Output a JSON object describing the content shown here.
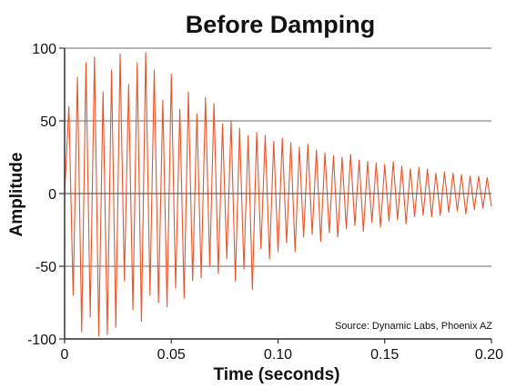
{
  "chart_data": {
    "type": "line",
    "title": "Before Damping",
    "xlabel": "Time (seconds)",
    "ylabel": "Amplitude",
    "xlim": [
      0,
      0.2
    ],
    "ylim": [
      -100,
      100
    ],
    "x_ticks": [
      0,
      0.05,
      0.1,
      0.15,
      0.2
    ],
    "x_tick_labels": [
      "0",
      "0.05",
      "0.10",
      "0.15",
      "0.20"
    ],
    "y_ticks": [
      100,
      50,
      0,
      -50,
      -100
    ],
    "y_tick_labels": [
      "100",
      "50",
      "0",
      "-50",
      "-100"
    ],
    "grid": "horizontal",
    "annotation": "Source: Dynamic Labs, Phoenix AZ",
    "colors": {
      "series": "#e8542a",
      "grid": "#888888",
      "axis": "#333333"
    },
    "series": [
      {
        "x_start": 0,
        "x_step": 0.002,
        "y": [
          0,
          60,
          -70,
          80,
          -95,
          90,
          -85,
          94,
          -98,
          70,
          -97,
          85,
          -92,
          96,
          -60,
          75,
          -80,
          90,
          -88,
          97,
          -70,
          85,
          -75,
          64,
          -78,
          82,
          -65,
          58,
          -72,
          70,
          -60,
          55,
          -58,
          66,
          -50,
          62,
          -55,
          48,
          -45,
          50,
          -60,
          45,
          -52,
          40,
          -66,
          42,
          -38,
          40,
          -45,
          36,
          -40,
          38,
          -34,
          35,
          -40,
          32,
          -30,
          34,
          -28,
          30,
          -33,
          28,
          -27,
          26,
          -30,
          25,
          -24,
          27,
          -22,
          23,
          -26,
          22,
          -20,
          21,
          -23,
          20,
          -19,
          22,
          -18,
          19,
          -21,
          17,
          -16,
          18,
          -15,
          17,
          -16,
          14,
          -15,
          15,
          -13,
          14,
          -12,
          13,
          -14,
          12,
          -11,
          12,
          -10,
          11,
          -9
        ]
      }
    ]
  }
}
